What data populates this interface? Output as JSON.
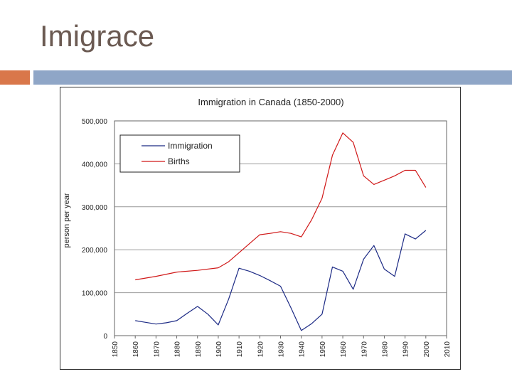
{
  "slide": {
    "title": "Imigrace"
  },
  "colors": {
    "accent": "#d9774a",
    "rule": "#8fa6c7",
    "immigration": "#1c2a85",
    "births": "#d01818"
  },
  "chart_data": {
    "type": "line",
    "title": "Immigration in Canada (1850-2000)",
    "xlabel": "",
    "ylabel": "person per year",
    "xlim": [
      1850,
      2010
    ],
    "ylim": [
      0,
      500000
    ],
    "grid": true,
    "legend_position": "top-left",
    "x_ticks": [
      "1850",
      "1860",
      "1870",
      "1880",
      "1890",
      "1900",
      "1910",
      "1920",
      "1930",
      "1940",
      "1950",
      "1960",
      "1970",
      "1980",
      "1990",
      "2000",
      "2010"
    ],
    "y_tick_labels": [
      "0",
      "100,000",
      "200,000",
      "300,000",
      "400,000",
      "500,000"
    ],
    "y_tick_values": [
      0,
      100000,
      200000,
      300000,
      400000,
      500000
    ],
    "series": [
      {
        "name": "Immigration",
        "color": "#1c2a85",
        "x": [
          1860,
          1865,
          1870,
          1875,
          1880,
          1885,
          1890,
          1895,
          1900,
          1905,
          1910,
          1915,
          1920,
          1925,
          1930,
          1935,
          1940,
          1945,
          1950,
          1955,
          1960,
          1965,
          1970,
          1975,
          1980,
          1985,
          1990,
          1995,
          2000
        ],
        "values": [
          35000,
          31000,
          27000,
          30000,
          35000,
          52000,
          68000,
          50000,
          25000,
          85000,
          157000,
          150000,
          140000,
          128000,
          115000,
          65000,
          12000,
          28000,
          50000,
          160000,
          150000,
          108000,
          178000,
          210000,
          155000,
          138000,
          237000,
          225000,
          245000
        ]
      },
      {
        "name": "Births",
        "color": "#d01818",
        "x": [
          1860,
          1870,
          1880,
          1890,
          1900,
          1905,
          1910,
          1915,
          1920,
          1925,
          1930,
          1935,
          1940,
          1945,
          1950,
          1955,
          1960,
          1965,
          1970,
          1975,
          1980,
          1985,
          1990,
          1995,
          2000
        ],
        "values": [
          130000,
          138000,
          148000,
          152000,
          158000,
          172000,
          193000,
          214000,
          235000,
          238000,
          242000,
          238000,
          230000,
          270000,
          320000,
          420000,
          472000,
          450000,
          372000,
          352000,
          362000,
          372000,
          385000,
          385000,
          345000
        ]
      }
    ]
  }
}
